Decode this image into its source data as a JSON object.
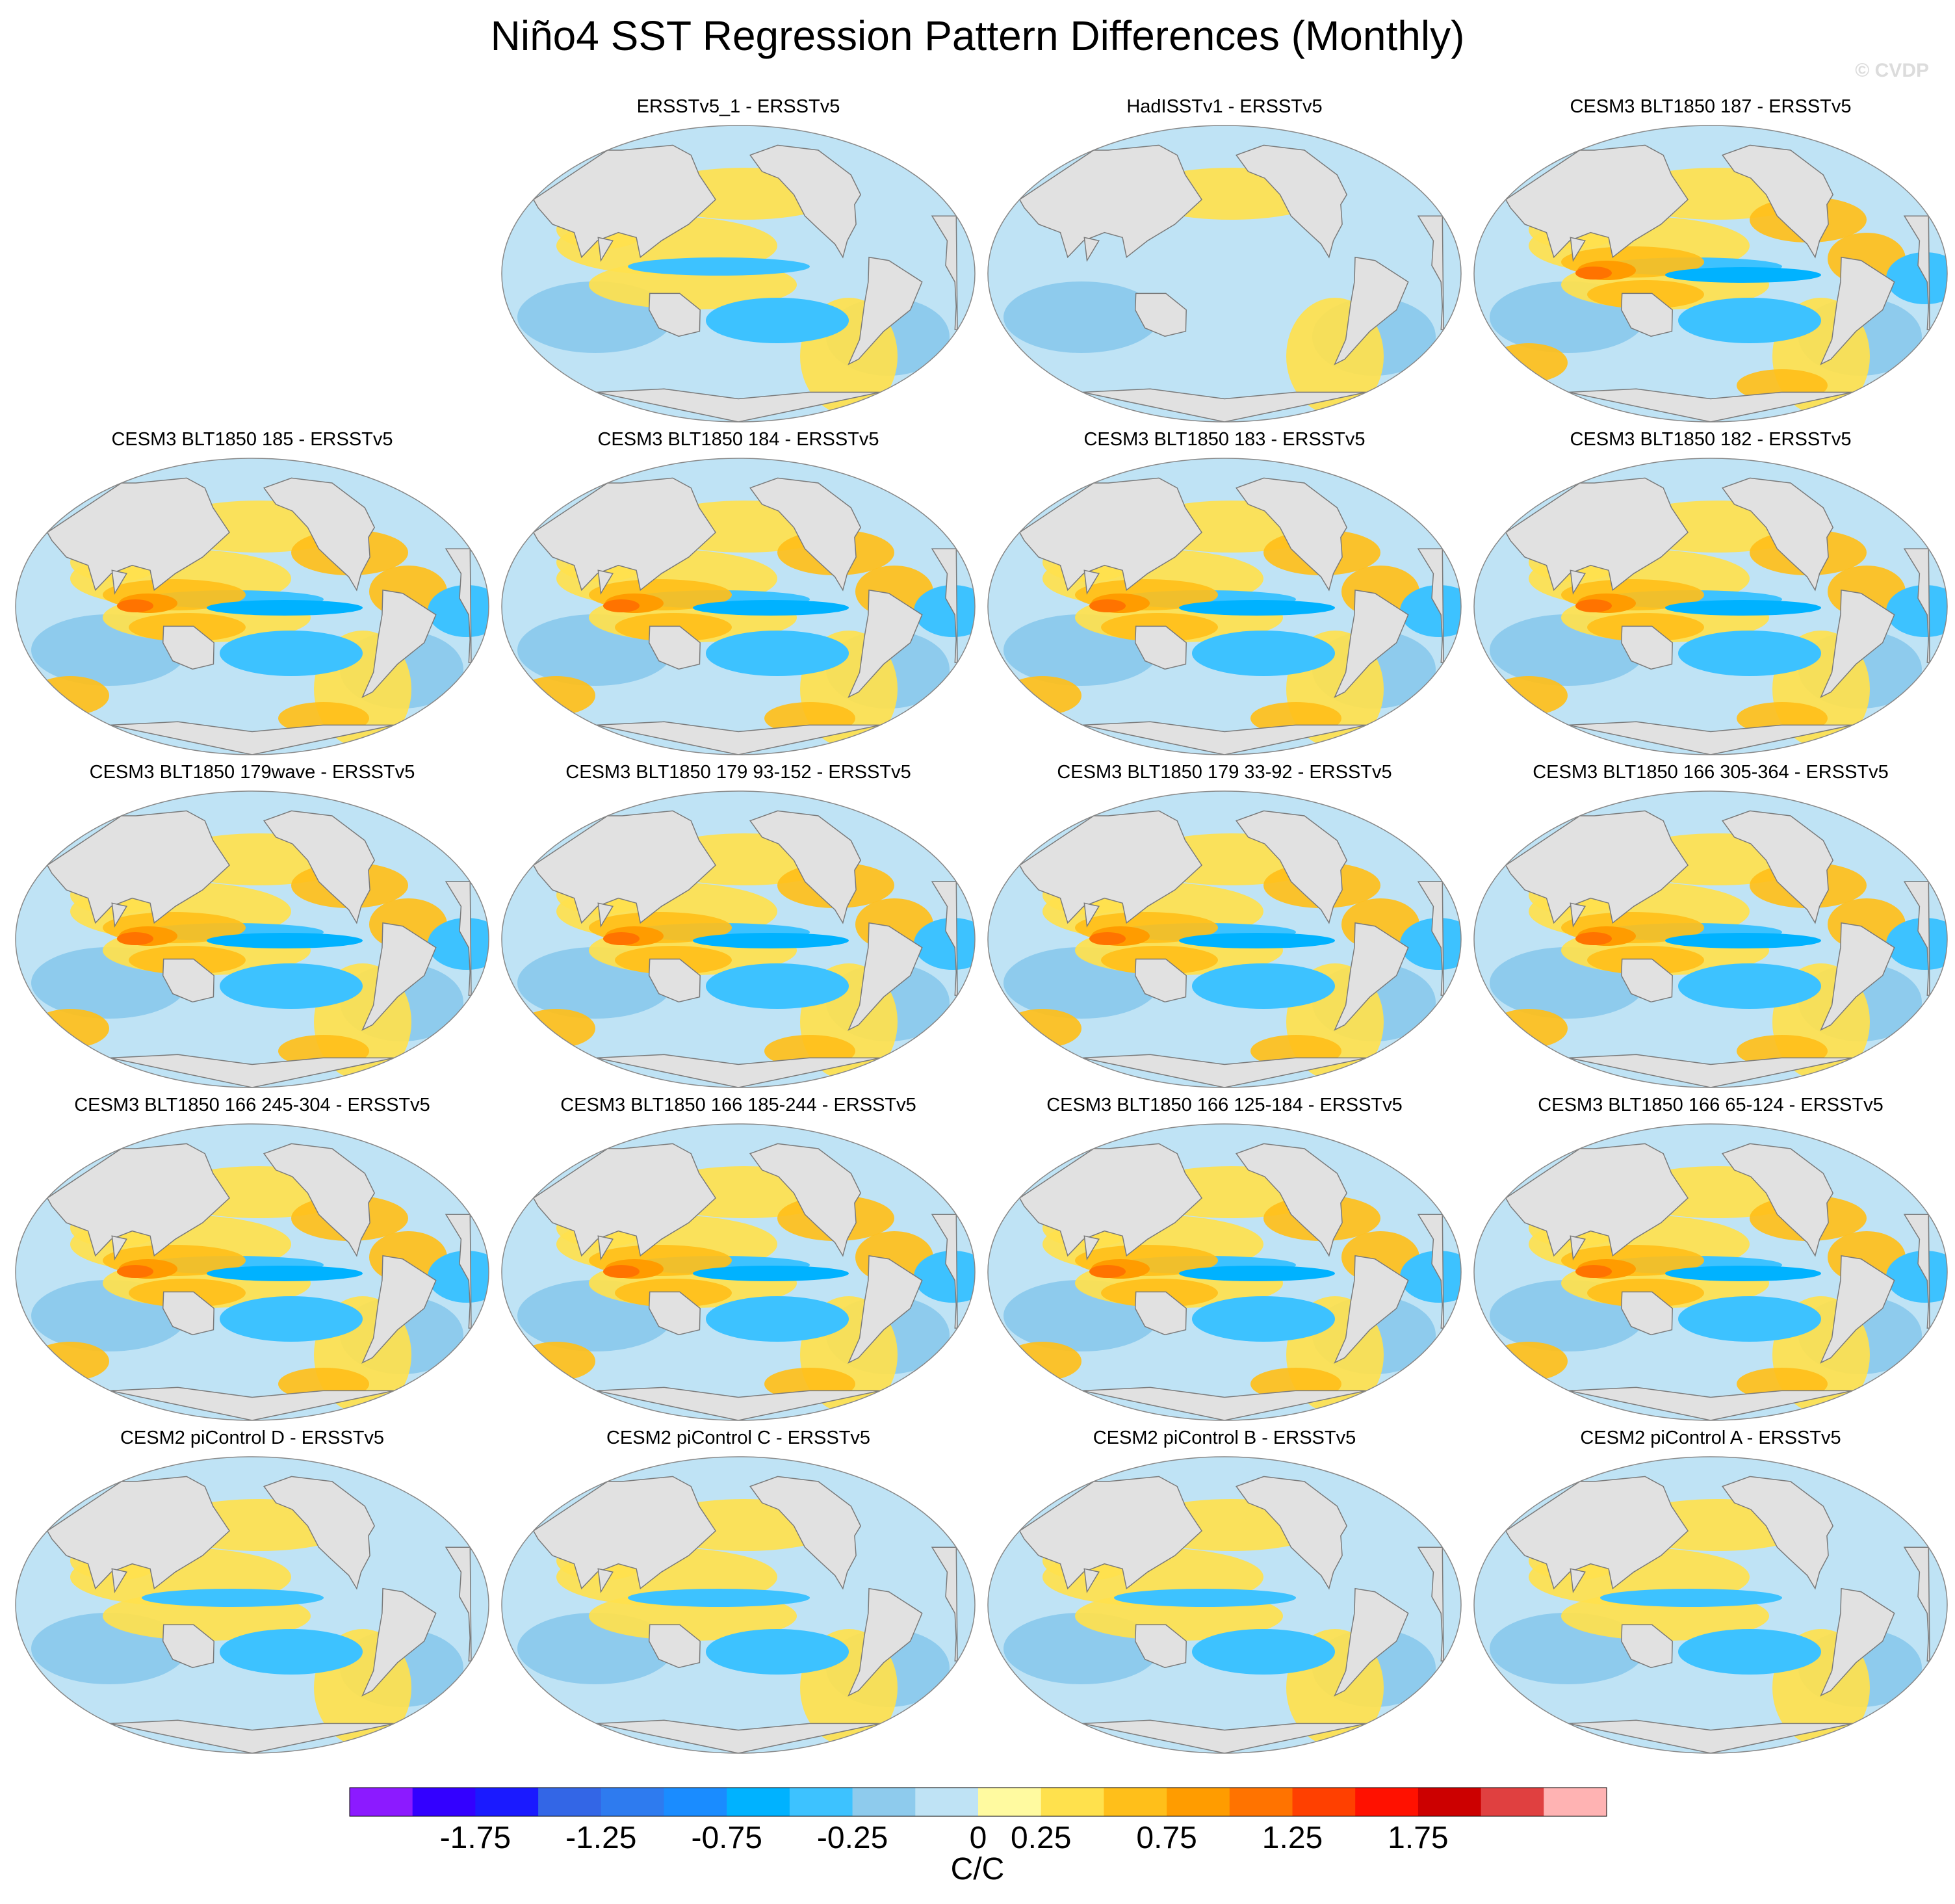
{
  "title": "Niño4 SST Regression Pattern Differences (Monthly)",
  "watermark": "© CVDP",
  "panels": [
    {
      "label": "ERSSTv5_1 - ERSSTv5",
      "variant": 0.5
    },
    {
      "label": "HadISSTv1 - ERSSTv5",
      "variant": 0.25
    },
    {
      "label": "CESM3 BLT1850 187 - ERSSTv5",
      "variant": 1.0
    },
    {
      "label": "CESM3 BLT1850 185 - ERSSTv5",
      "variant": 1.0
    },
    {
      "label": "CESM3 BLT1850 184 - ERSSTv5",
      "variant": 1.0
    },
    {
      "label": "CESM3 BLT1850 183 - ERSSTv5",
      "variant": 1.0
    },
    {
      "label": "CESM3 BLT1850 182 - ERSSTv5",
      "variant": 1.0
    },
    {
      "label": "CESM3 BLT1850 179wave - ERSSTv5",
      "variant": 1.0
    },
    {
      "label": "CESM3 BLT1850 179 93-152 - ERSSTv5",
      "variant": 1.0
    },
    {
      "label": "CESM3 BLT1850 179 33-92 - ERSSTv5",
      "variant": 1.0
    },
    {
      "label": "CESM3 BLT1850 166 305-364 - ERSSTv5",
      "variant": 1.0
    },
    {
      "label": "CESM3 BLT1850 166 245-304 - ERSSTv5",
      "variant": 1.0
    },
    {
      "label": "CESM3 BLT1850 166 185-244 - ERSSTv5",
      "variant": 1.0
    },
    {
      "label": "CESM3 BLT1850 166 125-184 - ERSSTv5",
      "variant": 1.0
    },
    {
      "label": "CESM3 BLT1850 166 65-124 - ERSSTv5",
      "variant": 1.0
    },
    {
      "label": "CESM2 piControl D - ERSSTv5",
      "variant": 0.6
    },
    {
      "label": "CESM2 piControl C - ERSSTv5",
      "variant": 0.6
    },
    {
      "label": "CESM2 piControl B - ERSSTv5",
      "variant": 0.6
    },
    {
      "label": "CESM2 piControl A - ERSSTv5",
      "variant": 0.6
    }
  ],
  "colorbar": {
    "units": "C/C",
    "tick_labels": [
      "-1.75",
      "-1.25",
      "-0.75",
      "-0.25",
      "0",
      "0.25",
      "0.75",
      "1.25",
      "1.75"
    ],
    "colors": [
      "#8c1aff",
      "#3300ff",
      "#1a1aff",
      "#3366e6",
      "#2e7bef",
      "#1a8cff",
      "#00b2ff",
      "#3dc2ff",
      "#8ecbed",
      "#bfe3f5",
      "#fffaa0",
      "#ffe14d",
      "#ffbf1a",
      "#ff9c00",
      "#ff7300",
      "#ff4000",
      "#ff1100",
      "#cc0000",
      "#e04040",
      "#ffb3b3"
    ],
    "ocean_positive": "#ffc72e",
    "ocean_negative": "#8ecbed",
    "land": "#e1e1e1"
  }
}
